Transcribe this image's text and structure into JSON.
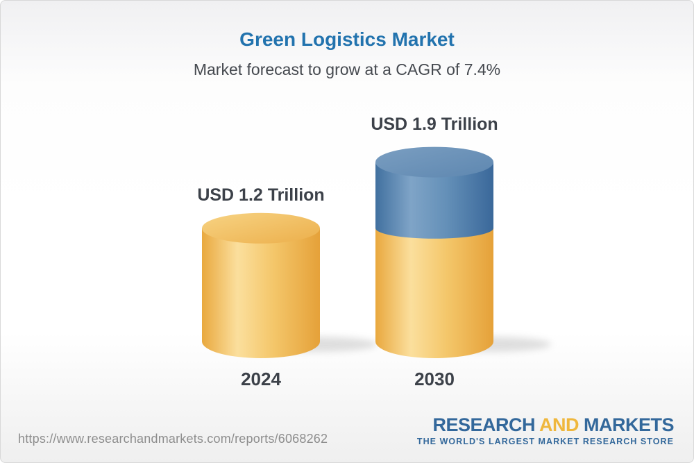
{
  "header": {
    "title": "Green Logistics Market",
    "subtitle": "Market forecast to grow at a CAGR of 7.4%"
  },
  "chart_data": {
    "type": "bar",
    "title": "Green Logistics Market",
    "subtitle": "Market forecast to grow at a CAGR of 7.4%",
    "unit": "USD Trillion",
    "cagr_percent": 7.4,
    "categories": [
      "2024",
      "2030"
    ],
    "values": [
      1.2,
      1.9
    ],
    "ylim": [
      0,
      2
    ],
    "legend": "none",
    "grid": false,
    "bars": [
      {
        "year": "2024",
        "value": 1.2,
        "value_label": "USD 1.2 Trillion",
        "segments": [
          {
            "role": "base",
            "value": 1.2
          }
        ]
      },
      {
        "year": "2030",
        "value": 1.9,
        "value_label": "USD 1.9 Trillion",
        "segments": [
          {
            "role": "base",
            "value": 1.2
          },
          {
            "role": "growth",
            "value": 0.7
          }
        ]
      }
    ]
  },
  "colors": {
    "title_blue": "#2273AE",
    "text_dark": "#3C4149",
    "subtitle_gray": "#45494F",
    "url_gray": "#8D8D8D",
    "logo_blue": "#33689B",
    "logo_yellow": "#EFB73D",
    "bar_yellow": "#F5C869",
    "bar_blue": "#5C88B1",
    "yellow_side": [
      "#E9A83E",
      "#FBDF9D",
      "#F4C76B",
      "#E5A139"
    ],
    "yellow_cap": [
      "#F7D383",
      "#ECAF4B"
    ],
    "blue_side": [
      "#41709F",
      "#7FA4C7",
      "#6490B8",
      "#3A689A"
    ],
    "blue_cap": [
      "#7A9EC1",
      "#5E87B0"
    ]
  },
  "footer": {
    "url": "https://www.researchandmarkets.com/reports/6068262",
    "logo": {
      "research": "RESEARCH",
      "and": "AND",
      "markets": "MARKETS",
      "tagline": "THE WORLD'S LARGEST MARKET RESEARCH STORE"
    }
  }
}
